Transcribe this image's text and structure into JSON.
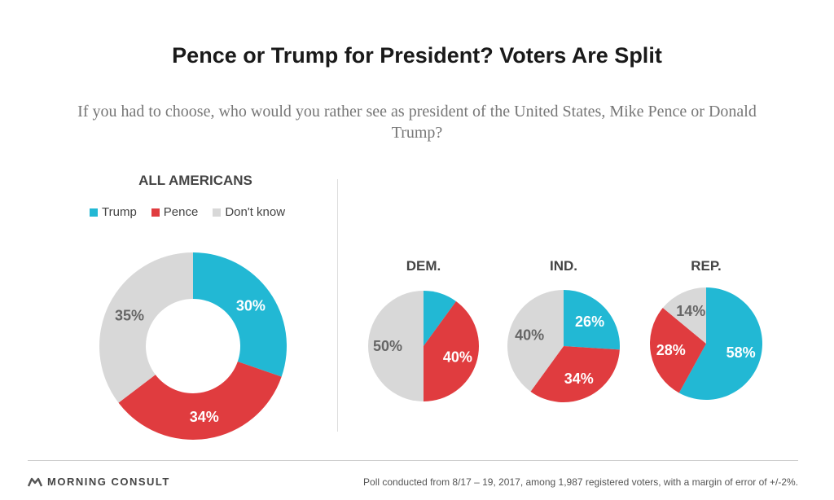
{
  "title": "Pence or Trump for President? Voters Are Split",
  "subtitle": "If you had to choose, who would you rather see as president of the United States, Mike Pence or Donald Trump?",
  "chart_data": [
    {
      "type": "pie",
      "variant": "donut",
      "title": "ALL AMERICANS",
      "categories": [
        "Trump",
        "Pence",
        "Don't know"
      ],
      "values": [
        30,
        34,
        35
      ],
      "labels": [
        "30%",
        "34%",
        "35%"
      ],
      "colors": [
        "#22b8d4",
        "#e03c3f",
        "#d8d8d8"
      ],
      "legend": "top"
    },
    {
      "type": "pie",
      "title": "DEM.",
      "categories": [
        "Trump",
        "Pence",
        "Don't know"
      ],
      "values": [
        10,
        40,
        50
      ],
      "labels": [
        "",
        "40%",
        "50%"
      ],
      "colors": [
        "#22b8d4",
        "#e03c3f",
        "#d8d8d8"
      ]
    },
    {
      "type": "pie",
      "title": "IND.",
      "categories": [
        "Trump",
        "Pence",
        "Don't know"
      ],
      "values": [
        26,
        34,
        40
      ],
      "labels": [
        "26%",
        "34%",
        "40%"
      ],
      "colors": [
        "#22b8d4",
        "#e03c3f",
        "#d8d8d8"
      ]
    },
    {
      "type": "pie",
      "title": "REP.",
      "categories": [
        "Trump",
        "Pence",
        "Don't know"
      ],
      "values": [
        58,
        28,
        14
      ],
      "labels": [
        "58%",
        "28%",
        "14%"
      ],
      "colors": [
        "#22b8d4",
        "#e03c3f",
        "#d8d8d8"
      ]
    }
  ],
  "legend": {
    "items": [
      {
        "label": "Trump",
        "color": "#22b8d4"
      },
      {
        "label": "Pence",
        "color": "#e03c3f"
      },
      {
        "label": "Don't know",
        "color": "#d8d8d8"
      }
    ]
  },
  "footer": {
    "brand": "MORNING CONSULT",
    "brand_icon": "morning-consult-logo-icon",
    "note": "Poll conducted from 8/17 – 19, 2017, among 1,987 registered voters, with a margin of error of +/-2%."
  }
}
